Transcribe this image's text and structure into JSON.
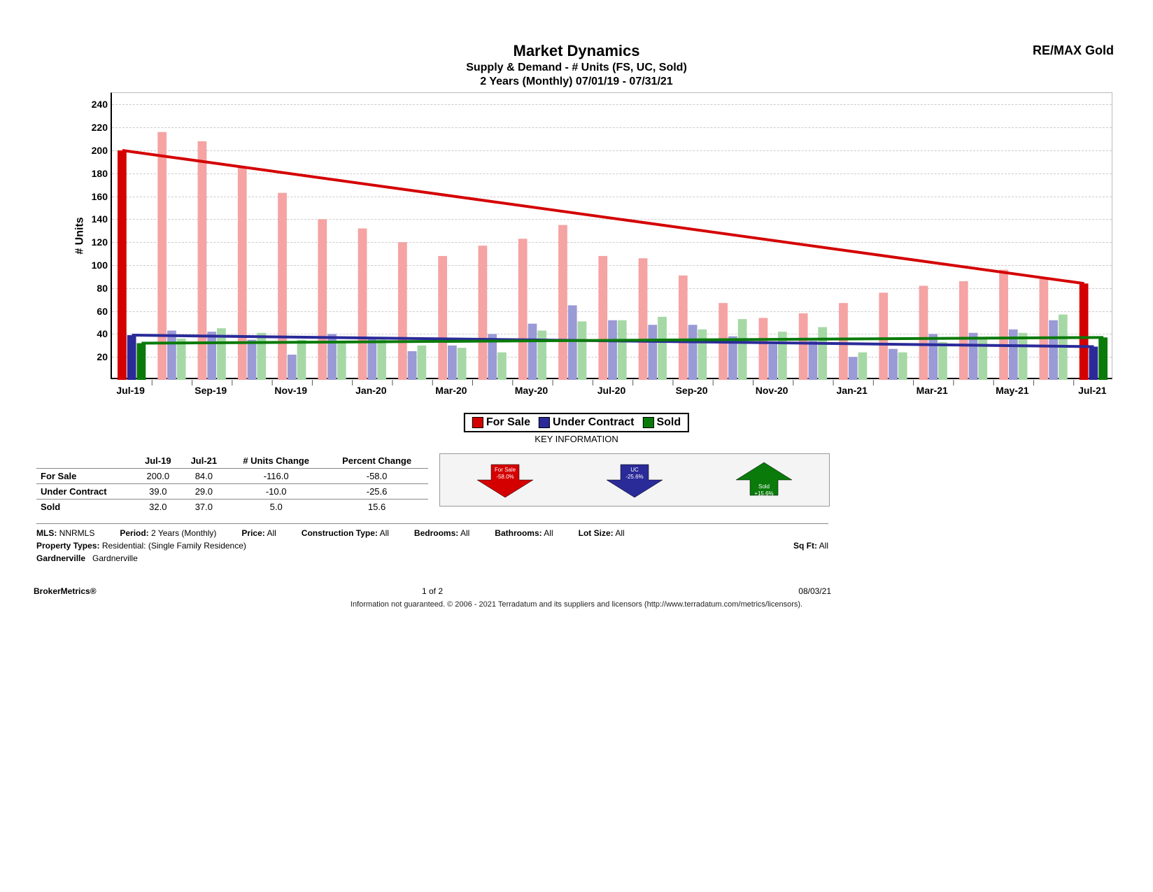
{
  "header": {
    "title": "Market Dynamics",
    "subtitle1": "Supply & Demand - # Units (FS, UC, Sold)",
    "subtitle2": "2 Years (Monthly) 07/01/19 - 07/31/21",
    "brand": "RE/MAX Gold"
  },
  "chart": {
    "type": "bar+line",
    "ylabel": "# Units",
    "ylim": [
      0,
      250
    ],
    "ytick_step": 20,
    "background_color": "#ffffff",
    "grid_color": "#cccccc",
    "axis_color": "#000000",
    "series": [
      {
        "key": "for_sale",
        "label": "For Sale",
        "bar_color": "#f5a3a3",
        "endpoint_color": "#d40000",
        "trend_color": "#d40000"
      },
      {
        "key": "under_contract",
        "label": "Under Contract",
        "bar_color": "#9a9ad6",
        "endpoint_color": "#2a2a99",
        "trend_color": "#2a2a99"
      },
      {
        "key": "sold",
        "label": "Sold",
        "bar_color": "#a6d8a6",
        "endpoint_color": "#0a7a0a",
        "trend_color": "#0a7a0a"
      }
    ],
    "legend_colors": {
      "for_sale": "#d40000",
      "under_contract": "#2a2a99",
      "sold": "#0a7a0a"
    },
    "months": [
      "Jul-19",
      "Aug-19",
      "Sep-19",
      "Oct-19",
      "Nov-19",
      "Dec-19",
      "Jan-20",
      "Feb-20",
      "Mar-20",
      "Apr-20",
      "May-20",
      "Jun-20",
      "Jul-20",
      "Aug-20",
      "Sep-20",
      "Oct-20",
      "Nov-20",
      "Dec-20",
      "Jan-21",
      "Feb-21",
      "Mar-21",
      "Apr-21",
      "May-21",
      "Jun-21",
      "Jul-21"
    ],
    "xaxis_show_every": 2,
    "data": {
      "for_sale": [
        200,
        216,
        208,
        185,
        163,
        140,
        132,
        120,
        108,
        117,
        123,
        135,
        108,
        106,
        91,
        67,
        54,
        58,
        67,
        76,
        82,
        86,
        96,
        88,
        84
      ],
      "under_contract": [
        39,
        43,
        42,
        35,
        22,
        40,
        36,
        25,
        30,
        40,
        49,
        65,
        52,
        48,
        48,
        38,
        31,
        34,
        20,
        27,
        40,
        41,
        44,
        52,
        29
      ],
      "sold": [
        32,
        36,
        45,
        41,
        35,
        32,
        35,
        30,
        28,
        24,
        43,
        51,
        52,
        55,
        44,
        53,
        42,
        46,
        24,
        24,
        33,
        37,
        41,
        57,
        37
      ]
    },
    "trendlines": {
      "for_sale": {
        "start": 200,
        "end": 84
      },
      "under_contract": {
        "start": 39,
        "end": 29
      },
      "sold": {
        "start": 32,
        "end": 37
      }
    }
  },
  "legend": {
    "for_sale": "For Sale",
    "under_contract": "Under Contract",
    "sold": "Sold"
  },
  "key_info_label": "KEY INFORMATION",
  "key_table": {
    "columns": [
      "",
      "Jul-19",
      "Jul-21",
      "# Units Change",
      "Percent Change"
    ],
    "rows": [
      {
        "label": "For Sale",
        "start": "200.0",
        "end": "84.0",
        "change": "-116.0",
        "pct": "-58.0"
      },
      {
        "label": "Under Contract",
        "start": "39.0",
        "end": "29.0",
        "change": "-10.0",
        "pct": "-25.6"
      },
      {
        "label": "Sold",
        "start": "32.0",
        "end": "37.0",
        "change": "5.0",
        "pct": "15.6"
      }
    ]
  },
  "arrows": [
    {
      "label": "For Sale",
      "pct": "-58.0%",
      "dir": "down",
      "color": "#d40000"
    },
    {
      "label": "UC",
      "pct": "-25.6%",
      "dir": "down",
      "color": "#2a2a99"
    },
    {
      "label": "Sold",
      "pct": "+15.6%",
      "dir": "up",
      "color": "#0a7a0a"
    }
  ],
  "filters": {
    "mls_label": "MLS:",
    "mls": "NNRMLS",
    "period_label": "Period:",
    "period": "2 Years (Monthly)",
    "price_label": "Price:",
    "price": "All",
    "construction_label": "Construction Type:",
    "construction": "All",
    "bedrooms_label": "Bedrooms:",
    "bedrooms": "All",
    "bathrooms_label": "Bathrooms:",
    "bathrooms": "All",
    "lot_label": "Lot Size:",
    "lot": "All",
    "ptype_label": "Property Types:",
    "ptype": "Residential: (Single Family Residence)",
    "sqft_label": "Sq Ft:",
    "sqft": "All",
    "area_label": "Gardnerville",
    "area": "Gardnerville"
  },
  "footer": {
    "product": "BrokerMetrics®",
    "page": "1 of 2",
    "date": "08/03/21",
    "disclaimer": "Information not guaranteed. © 2006 - 2021 Terradatum and its suppliers and licensors (http://www.terradatum.com/metrics/licensors)."
  }
}
